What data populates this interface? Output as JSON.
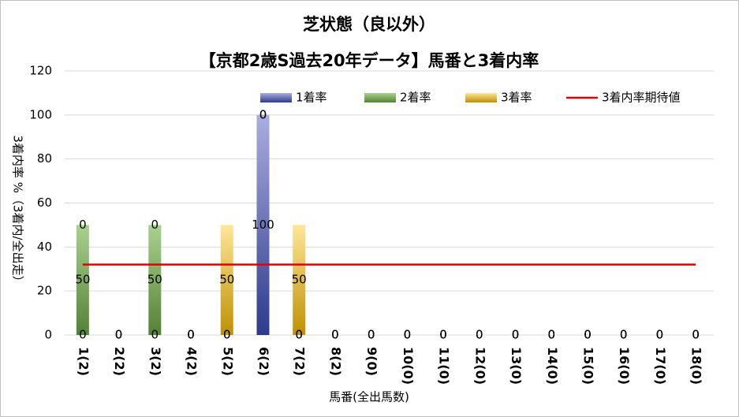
{
  "chart_data": {
    "type": "bar",
    "stacked": true,
    "title": "芝状態（良以外）",
    "subtitle": "【京都2歳S過去20年データ】馬番と3着内率",
    "x_label": "馬番(全出馬数)",
    "y_label": "3着内率 %（3着内/全出走）",
    "categories": [
      "1(2)",
      "2(2)",
      "3(2)",
      "4(2)",
      "5(2)",
      "6(2)",
      "7(2)",
      "8(2)",
      "9(0)",
      "10(0)",
      "11(0)",
      "12(0)",
      "13(0)",
      "14(0)",
      "15(0)",
      "16(0)",
      "17(0)",
      "18(0)"
    ],
    "series": [
      {
        "name": "1着率",
        "color": "#2e3a8c",
        "light": "#a9aedf",
        "values": [
          0,
          0,
          0,
          0,
          0,
          100,
          0,
          0,
          0,
          0,
          0,
          0,
          0,
          0,
          0,
          0,
          0,
          0
        ]
      },
      {
        "name": "2着率",
        "color": "#548235",
        "light": "#a9d18e",
        "values": [
          50,
          0,
          50,
          0,
          0,
          0,
          0,
          0,
          0,
          0,
          0,
          0,
          0,
          0,
          0,
          0,
          0,
          0
        ]
      },
      {
        "name": "3着率",
        "color": "#bf9000",
        "light": "#ffe699",
        "values": [
          0,
          0,
          0,
          0,
          50,
          0,
          50,
          0,
          0,
          0,
          0,
          0,
          0,
          0,
          0,
          0,
          0,
          0
        ]
      },
      {
        "name": "3着内率期待値",
        "type": "line",
        "color": "#e00000",
        "values": [
          32,
          32,
          32,
          32,
          32,
          32,
          32,
          32,
          32,
          32,
          32,
          32,
          32,
          32,
          32,
          32,
          32,
          32
        ]
      }
    ],
    "ylim": [
      0,
      120
    ],
    "yticks": [
      0,
      20,
      40,
      60,
      80,
      100,
      120
    ],
    "grid": true,
    "legend": "top"
  }
}
